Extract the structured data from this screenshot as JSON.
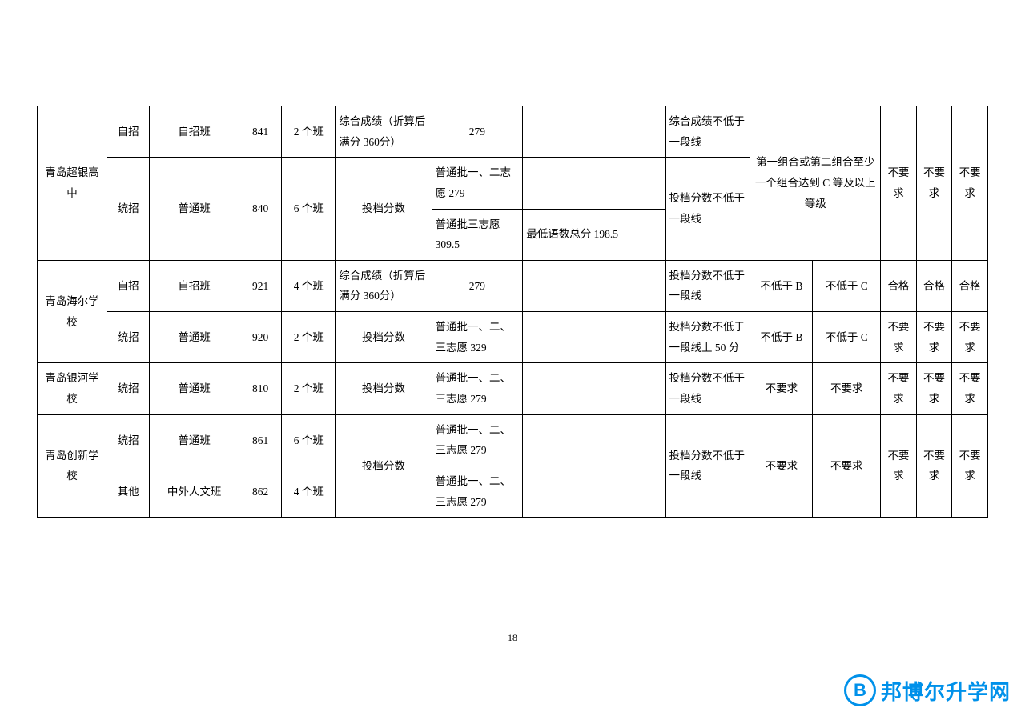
{
  "page_number": "18",
  "watermark": {
    "letter": "B",
    "text": "邦博尔升学网"
  },
  "schools": [
    {
      "name": "青岛超银高中",
      "groups": [
        {
          "type": "自招",
          "class": "自招班",
          "code": "841",
          "count": "2 个班",
          "score_label": "综合成绩（折算后满分 360分）",
          "batches": [
            {
              "batch": "279",
              "note": ""
            }
          ],
          "req1": "综合成绩不低于一段线",
          "req_combo_rowspan_target": true
        },
        {
          "type": "统招",
          "class": "普通班",
          "code": "840",
          "count": "6 个班",
          "score_label": "投档分数",
          "batches": [
            {
              "batch": "普通批一、二志愿 279",
              "note": ""
            },
            {
              "batch": "普通批三志愿 309.5",
              "note": "最低语数总分 198.5"
            }
          ],
          "req1": "投档分数不低于一段线"
        }
      ],
      "req_combo": "第一组合或第二组合至少一个组合达到 C 等及以上等级",
      "req_c12": "不要求",
      "req_c13": "不要求",
      "req_c14": "不要求"
    },
    {
      "name": "青岛海尔学校",
      "groups": [
        {
          "type": "自招",
          "class": "自招班",
          "code": "921",
          "count": "4 个班",
          "score_label": "综合成绩（折算后满分 360分）",
          "batches": [
            {
              "batch": "279",
              "note": ""
            }
          ],
          "req1": "投档分数不低于一段线",
          "req_c10": "不低于 B",
          "req_c11": "不低于 C",
          "req_c12": "合格",
          "req_c13": "合格",
          "req_c14": "合格"
        },
        {
          "type": "统招",
          "class": "普通班",
          "code": "920",
          "count": "2 个班",
          "score_label": "投档分数",
          "batches": [
            {
              "batch": "普通批一、二、三志愿 329",
              "note": ""
            }
          ],
          "req1": "投档分数不低于一段线上 50 分",
          "req_c10": "不低于 B",
          "req_c11": "不低于 C",
          "req_c12": "不要求",
          "req_c13": "不要求",
          "req_c14": "不要求"
        }
      ]
    },
    {
      "name": "青岛银河学校",
      "groups": [
        {
          "type": "统招",
          "class": "普通班",
          "code": "810",
          "count": "2 个班",
          "score_label": "投档分数",
          "batches": [
            {
              "batch": "普通批一、二、三志愿 279",
              "note": ""
            }
          ],
          "req1": "投档分数不低于一段线",
          "req_c10": "不要求",
          "req_c11": "不要求",
          "req_c12": "不要求",
          "req_c13": "不要求",
          "req_c14": "不要求"
        }
      ]
    },
    {
      "name": "青岛创新学校",
      "groups": [
        {
          "type": "统招",
          "class": "普通班",
          "code": "861",
          "count": "6 个班",
          "score_label_shared": true,
          "batches": [
            {
              "batch": "普通批一、二、三志愿 279",
              "note": ""
            }
          ]
        },
        {
          "type": "其他",
          "class": "中外人文班",
          "code": "862",
          "count": "4 个班",
          "batches": [
            {
              "batch": "普通批一、二、三志愿 279",
              "note": ""
            }
          ]
        }
      ],
      "score_label": "投档分数",
      "req1": "投档分数不低于一段线",
      "req_c10": "不要求",
      "req_c11": "不要求",
      "req_c12": "不要求",
      "req_c13": "不要求",
      "req_c14": "不要求"
    }
  ]
}
